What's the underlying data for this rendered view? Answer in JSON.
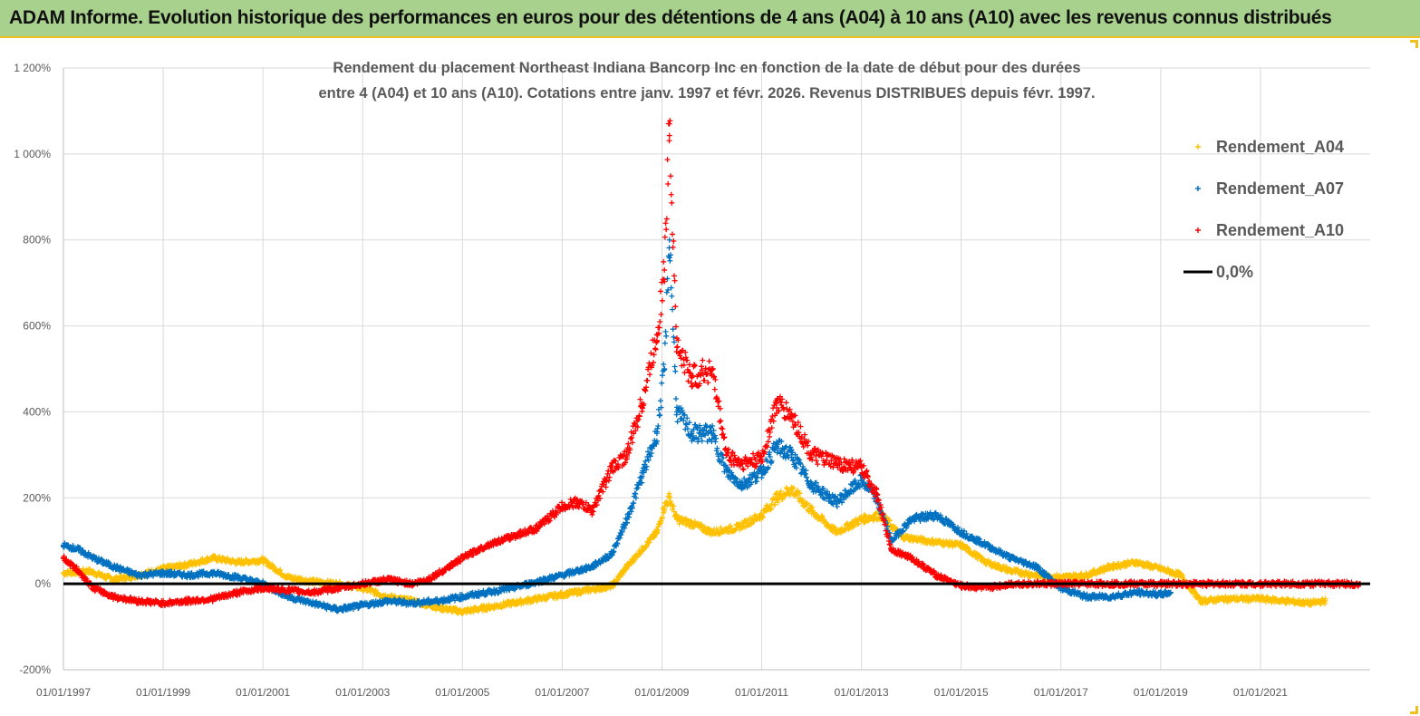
{
  "banner": {
    "title": "ADAM Informe. Evolution historique des performances en euros pour des détentions de 4 ans (A04) à 10 ans (A10) avec les revenus connus distribués"
  },
  "colors": {
    "banner_bg": "#a9d18e",
    "a04": "#ffc000",
    "a07": "#0070c0",
    "a10": "#ff0000",
    "zero": "#000000",
    "grid": "#d9d9d9"
  },
  "chart_data": {
    "type": "scatter",
    "title_line1": "Rendement du placement Northeast Indiana Bancorp Inc en fonction de la date de début pour des durées",
    "title_line2": "entre 4 (A04) et 10 ans (A10). Cotations entre janv. 1997 et févr. 2026. Revenus DISTRIBUES depuis févr. 1997.",
    "x_range": [
      1997.0,
      2023.2
    ],
    "ylim": [
      -200,
      1200
    ],
    "y_ticks": [
      -200,
      0,
      200,
      400,
      600,
      800,
      1000,
      1200
    ],
    "y_tick_labels": [
      "-200%",
      "0%",
      "200%",
      "400%",
      "600%",
      "800%",
      "1 000%",
      "1 200%"
    ],
    "x_ticks": [
      1997,
      1999,
      2001,
      2003,
      2005,
      2007,
      2009,
      2011,
      2013,
      2015,
      2017,
      2019,
      2021
    ],
    "x_tick_labels": [
      "01/01/1997",
      "01/01/1999",
      "01/01/2001",
      "01/01/2003",
      "01/01/2005",
      "01/01/2007",
      "01/01/2009",
      "01/01/2011",
      "01/01/2013",
      "01/01/2015",
      "01/01/2017",
      "01/01/2019",
      "01/01/2021"
    ],
    "grid": true,
    "legend_position": "top-right",
    "legend": [
      "Rendement_A04",
      "Rendement_A07",
      "Rendement_A10",
      "0,0%"
    ],
    "series": [
      {
        "name": "Rendement_A04",
        "marker": "+",
        "x": [
          1997.0,
          1997.5,
          1998.0,
          1998.5,
          1999.0,
          1999.5,
          2000.0,
          2000.5,
          2001.0,
          2001.5,
          2002.0,
          2002.5,
          2003.0,
          2003.5,
          2004.0,
          2004.5,
          2005.0,
          2005.5,
          2006.0,
          2006.5,
          2007.0,
          2007.5,
          2008.0,
          2008.3,
          2008.6,
          2008.9,
          2009.05,
          2009.15,
          2009.3,
          2009.6,
          2010.0,
          2010.5,
          2011.0,
          2011.3,
          2011.6,
          2012.0,
          2012.5,
          2013.0,
          2013.4,
          2013.8,
          2014.3,
          2015.0,
          2015.5,
          2016.0,
          2016.5,
          2017.0,
          2017.5,
          2018.0,
          2018.5,
          2019.0,
          2019.4,
          2019.8,
          2020.3,
          2021.0,
          2021.5,
          2022.0,
          2022.3
        ],
        "y": [
          25,
          30,
          10,
          20,
          35,
          45,
          60,
          50,
          55,
          15,
          5,
          0,
          -10,
          -30,
          -40,
          -55,
          -65,
          -55,
          -45,
          -35,
          -25,
          -15,
          -5,
          40,
          80,
          120,
          180,
          200,
          150,
          140,
          120,
          130,
          160,
          200,
          220,
          170,
          120,
          150,
          160,
          110,
          100,
          90,
          50,
          30,
          20,
          15,
          20,
          40,
          50,
          35,
          20,
          -40,
          -35,
          -35,
          -40,
          -45,
          -40
        ]
      },
      {
        "name": "Rendement_A07",
        "marker": "+",
        "x": [
          1997.0,
          1997.3,
          1997.6,
          1998.0,
          1998.5,
          1999.0,
          1999.5,
          2000.0,
          2000.5,
          2001.0,
          2001.5,
          2002.0,
          2002.5,
          2003.0,
          2003.5,
          2004.0,
          2004.5,
          2005.0,
          2005.5,
          2006.0,
          2006.5,
          2007.0,
          2007.3,
          2007.6,
          2008.0,
          2008.3,
          2008.6,
          2008.9,
          2009.05,
          2009.15,
          2009.3,
          2009.6,
          2010.0,
          2010.3,
          2010.6,
          2011.0,
          2011.3,
          2011.6,
          2012.0,
          2012.5,
          2013.0,
          2013.3,
          2013.6,
          2014.0,
          2014.5,
          2015.0,
          2015.5,
          2016.0,
          2016.5,
          2017.0,
          2017.5,
          2018.0,
          2018.5,
          2019.0,
          2019.2
        ],
        "y": [
          90,
          80,
          60,
          40,
          20,
          25,
          20,
          25,
          15,
          0,
          -30,
          -45,
          -60,
          -50,
          -40,
          -45,
          -40,
          -30,
          -20,
          -10,
          5,
          20,
          30,
          40,
          70,
          150,
          250,
          350,
          500,
          800,
          400,
          350,
          350,
          260,
          230,
          260,
          320,
          300,
          230,
          190,
          240,
          200,
          100,
          150,
          160,
          120,
          90,
          60,
          40,
          -10,
          -30,
          -30,
          -20,
          -25,
          -20
        ]
      },
      {
        "name": "Rendement_A10",
        "marker": "+",
        "x": [
          1997.0,
          1997.3,
          1997.6,
          1998.0,
          1998.5,
          1999.0,
          1999.5,
          2000.0,
          2000.5,
          2001.0,
          2001.5,
          2002.0,
          2002.5,
          2003.0,
          2003.5,
          2004.0,
          2004.3,
          2004.6,
          2005.0,
          2005.5,
          2006.0,
          2006.5,
          2007.0,
          2007.3,
          2007.6,
          2008.0,
          2008.3,
          2008.6,
          2008.9,
          2009.05,
          2009.15,
          2009.3,
          2009.6,
          2010.0,
          2010.3,
          2010.6,
          2011.0,
          2011.3,
          2011.6,
          2012.0,
          2012.5,
          2013.0,
          2013.3,
          2013.6,
          2014.0,
          2014.5,
          2015.0,
          2015.5,
          2016.0,
          2017.0,
          2018.0,
          2019.0,
          2020.0,
          2021.0,
          2022.0,
          2023.0
        ],
        "y": [
          60,
          30,
          -10,
          -30,
          -40,
          -45,
          -40,
          -35,
          -20,
          -10,
          -15,
          -20,
          -10,
          0,
          10,
          0,
          10,
          30,
          60,
          90,
          110,
          130,
          180,
          190,
          170,
          270,
          300,
          420,
          580,
          730,
          1070,
          550,
          480,
          500,
          300,
          280,
          290,
          420,
          390,
          300,
          280,
          270,
          210,
          80,
          60,
          20,
          -5,
          -10,
          0,
          0,
          0,
          0,
          0,
          0,
          0,
          0
        ]
      },
      {
        "name": "0,0%",
        "x": [
          1997.0,
          2023.2
        ],
        "y": [
          0,
          0
        ]
      }
    ]
  }
}
